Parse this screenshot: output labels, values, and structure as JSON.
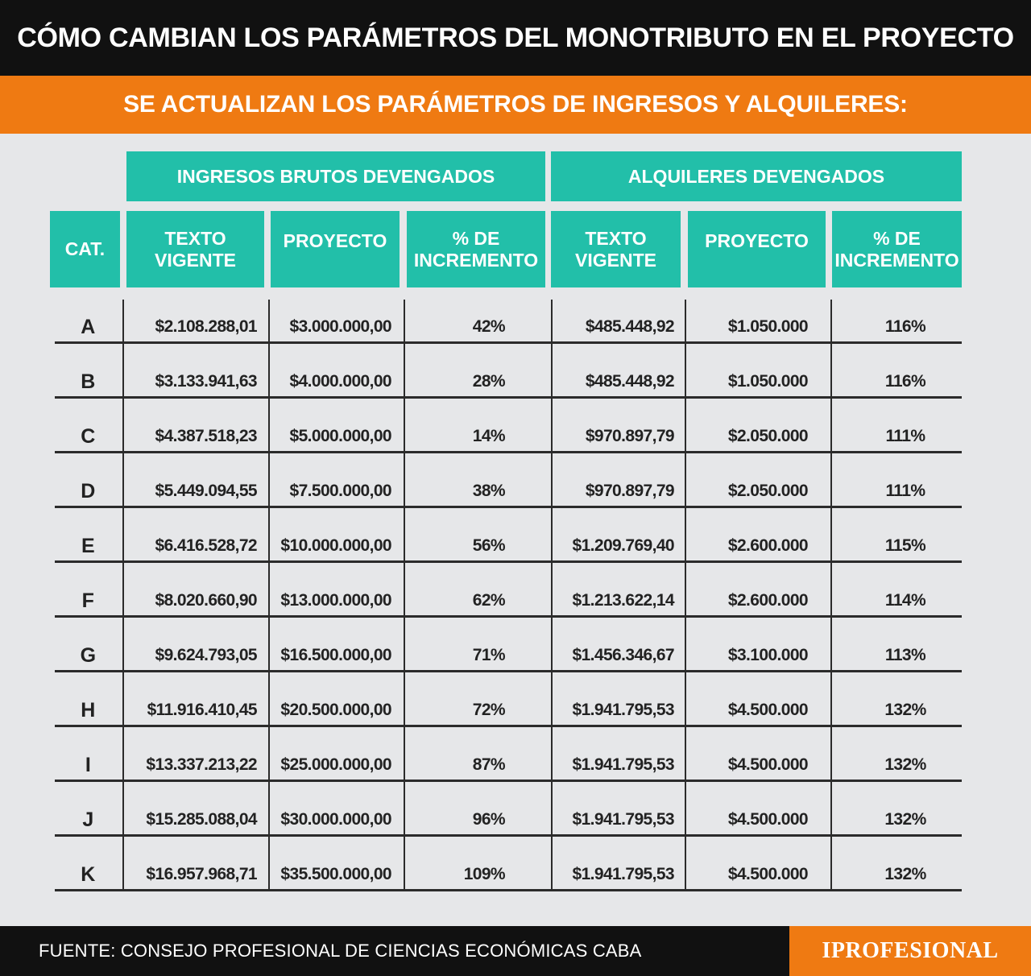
{
  "title": "CÓMO CAMBIAN LOS PARÁMETROS DEL MONOTRIBUTO EN EL PROYECTO",
  "subtitle": "SE ACTUALIZAN LOS PARÁMETROS DE INGRESOS Y ALQUILERES:",
  "groups": {
    "ingresos": "INGRESOS BRUTOS DEVENGADOS",
    "alquileres": "ALQUILERES DEVENGADOS"
  },
  "columns": {
    "cat": "CAT.",
    "ing_vigente": "TEXTO\nVIGENTE",
    "ing_proyecto": "PROYECTO",
    "ing_incremento": "% DE\nINCREMENTO",
    "alq_vigente": "TEXTO\nVIGENTE",
    "alq_proyecto": "PROYECTO",
    "alq_incremento": "% DE\nINCREMENTO"
  },
  "rows": [
    {
      "cat": "A",
      "ing_vigente": "$2.108.288,01",
      "ing_proyecto": "$3.000.000,00",
      "ing_incremento": "42%",
      "alq_vigente": "$485.448,92",
      "alq_proyecto": "$1.050.000",
      "alq_incremento": "116%"
    },
    {
      "cat": "B",
      "ing_vigente": "$3.133.941,63",
      "ing_proyecto": "$4.000.000,00",
      "ing_incremento": "28%",
      "alq_vigente": "$485.448,92",
      "alq_proyecto": "$1.050.000",
      "alq_incremento": "116%"
    },
    {
      "cat": "C",
      "ing_vigente": "$4.387.518,23",
      "ing_proyecto": "$5.000.000,00",
      "ing_incremento": "14%",
      "alq_vigente": "$970.897,79",
      "alq_proyecto": "$2.050.000",
      "alq_incremento": "111%"
    },
    {
      "cat": "D",
      "ing_vigente": "$5.449.094,55",
      "ing_proyecto": "$7.500.000,00",
      "ing_incremento": "38%",
      "alq_vigente": "$970.897,79",
      "alq_proyecto": "$2.050.000",
      "alq_incremento": "111%"
    },
    {
      "cat": "E",
      "ing_vigente": "$6.416.528,72",
      "ing_proyecto": "$10.000.000,00",
      "ing_incremento": "56%",
      "alq_vigente": "$1.209.769,40",
      "alq_proyecto": "$2.600.000",
      "alq_incremento": "115%"
    },
    {
      "cat": "F",
      "ing_vigente": "$8.020.660,90",
      "ing_proyecto": "$13.000.000,00",
      "ing_incremento": "62%",
      "alq_vigente": "$1.213.622,14",
      "alq_proyecto": "$2.600.000",
      "alq_incremento": "114%"
    },
    {
      "cat": "G",
      "ing_vigente": "$9.624.793,05",
      "ing_proyecto": "$16.500.000,00",
      "ing_incremento": "71%",
      "alq_vigente": "$1.456.346,67",
      "alq_proyecto": "$3.100.000",
      "alq_incremento": "113%"
    },
    {
      "cat": "H",
      "ing_vigente": "$11.916.410,45",
      "ing_proyecto": "$20.500.000,00",
      "ing_incremento": "72%",
      "alq_vigente": "$1.941.795,53",
      "alq_proyecto": "$4.500.000",
      "alq_incremento": "132%"
    },
    {
      "cat": "I",
      "ing_vigente": "$13.337.213,22",
      "ing_proyecto": "$25.000.000,00",
      "ing_incremento": "87%",
      "alq_vigente": "$1.941.795,53",
      "alq_proyecto": "$4.500.000",
      "alq_incremento": "132%"
    },
    {
      "cat": "J",
      "ing_vigente": "$15.285.088,04",
      "ing_proyecto": "$30.000.000,00",
      "ing_incremento": "96%",
      "alq_vigente": "$1.941.795,53",
      "alq_proyecto": "$4.500.000",
      "alq_incremento": "132%"
    },
    {
      "cat": "K",
      "ing_vigente": "$16.957.968,71",
      "ing_proyecto": "$35.500.000,00",
      "ing_incremento": "109%",
      "alq_vigente": "$1.941.795,53",
      "alq_proyecto": "$4.500.000",
      "alq_incremento": "132%"
    }
  ],
  "footer": {
    "source": "FUENTE: CONSEJO PROFESIONAL DE CIENCIAS ECONÓMICAS CABA",
    "brand": "IPROFESIONAL"
  },
  "colors": {
    "title_bg": "#111111",
    "accent_orange": "#ef7a12",
    "header_teal": "#22bfa9",
    "page_bg": "#e6e7e9"
  }
}
